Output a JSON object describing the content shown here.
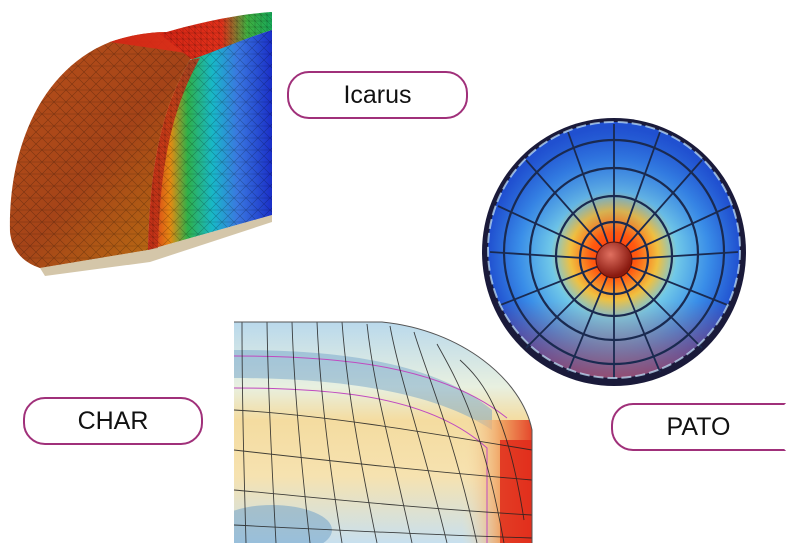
{
  "labels": {
    "icarus": "Icarus",
    "pato": "PATO",
    "char": "CHAR"
  },
  "colors": {
    "pill_border": "#a0307a",
    "hot": "#e0201a",
    "cool": "#2a44d0",
    "mid": "#2fb04a"
  }
}
